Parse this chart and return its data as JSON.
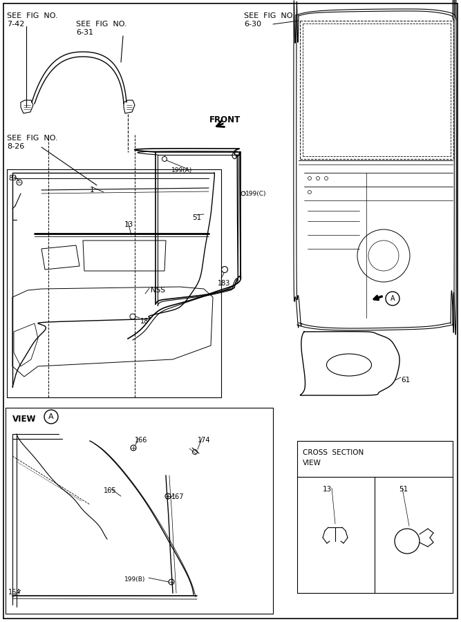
{
  "bg_color": "#ffffff",
  "line_color": "#000000",
  "fig_width": 6.67,
  "fig_height": 9.0,
  "dpi": 100,
  "texts": {
    "see_742_line1": "SEE  FIG  NO.",
    "see_742_line2": "7-42",
    "see_631_line1": "SEE  FIG  NO.",
    "see_631_line2": "6-31",
    "see_630_line1": "SEE  FIG  NO.",
    "see_630_line2": "6-30",
    "see_826_line1": "SEE  FIG  NO.",
    "see_826_line2": "8-26",
    "front": "FRONT",
    "nss": "NSS",
    "view_a": "VIEW",
    "cross_title": "CROSS  SECTION",
    "cross_sub": "VIEW",
    "p83": "83",
    "p1": "1",
    "p13": "13",
    "p18": "18",
    "p51": "51",
    "p61": "61",
    "p164": "164",
    "p165": "165",
    "p166": "166",
    "p167": "167",
    "p174": "174",
    "p183": "183",
    "p199A": "199(A)",
    "p199B": "199(B)",
    "p199C": "199(C)",
    "cs13": "13",
    "cs51": "51",
    "A": "A"
  }
}
